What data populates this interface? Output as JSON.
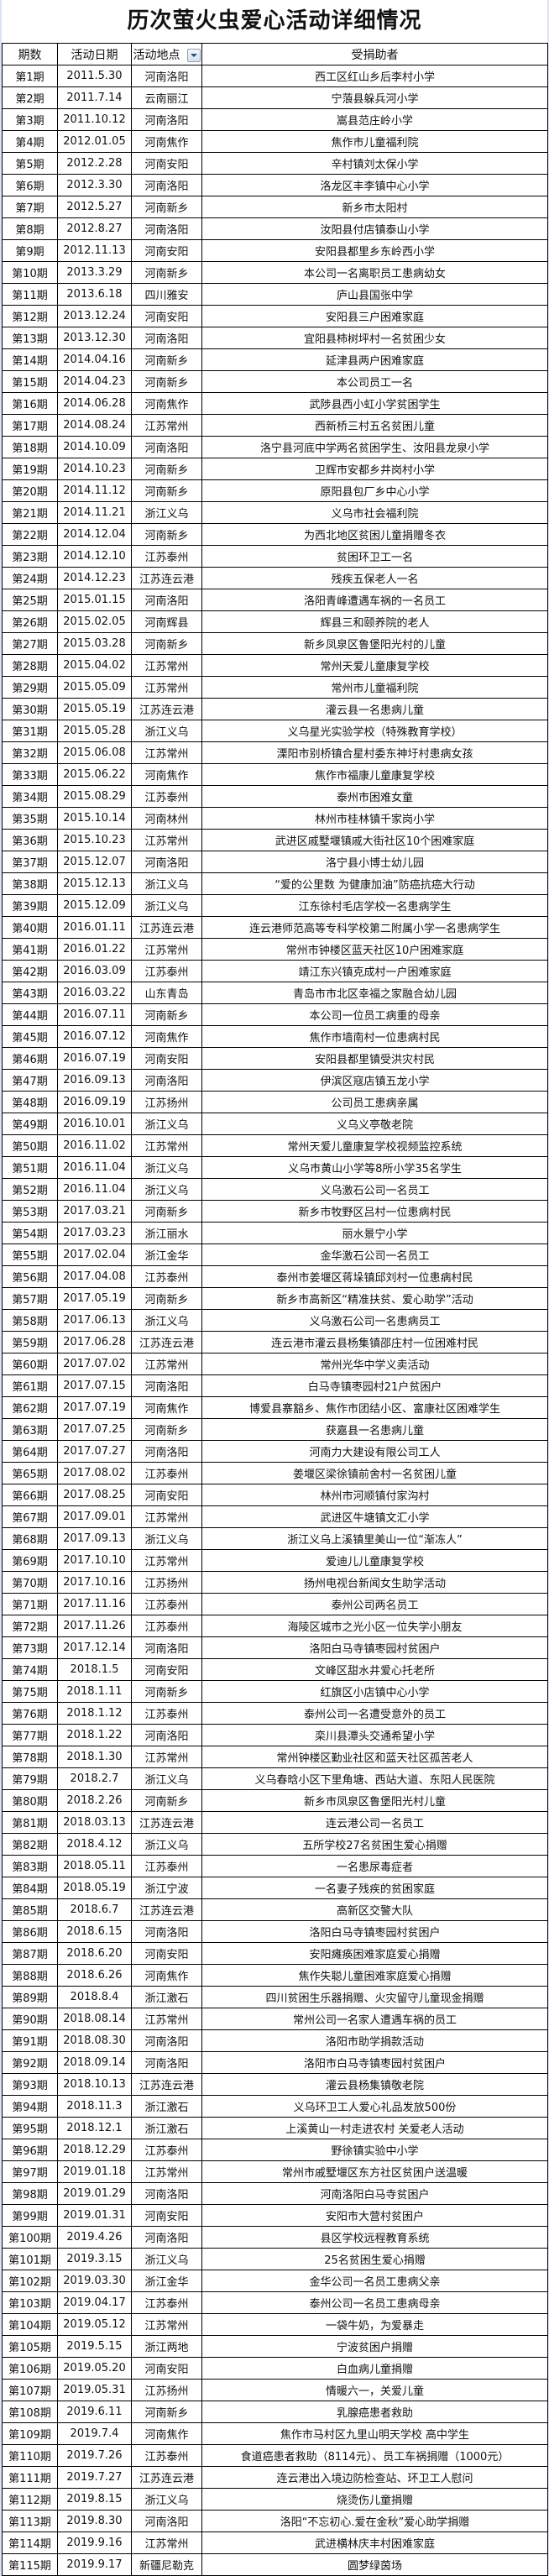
{
  "title": "历次萤火虫爱心活动详细情况",
  "headers": [
    "期数",
    "活动日期",
    "活动地点",
    "受捐助者"
  ],
  "filter_icon": "dropdown-filter-icon",
  "rows": [
    [
      "第1期",
      "2011.5.30",
      "河南洛阳",
      "西工区红山乡后李村小学"
    ],
    [
      "第2期",
      "2011.7.14",
      "云南丽江",
      "宁蒗县躲兵河小学"
    ],
    [
      "第3期",
      "2011.10.12",
      "河南洛阳",
      "嵩县范庄岭小学"
    ],
    [
      "第4期",
      "2012.01.05",
      "河南焦作",
      "焦作市儿童福利院"
    ],
    [
      "第5期",
      "2012.2.28",
      "河南安阳",
      "辛村镇刘太保小学"
    ],
    [
      "第6期",
      "2012.3.30",
      "河南洛阳",
      "洛龙区丰李镇中心小学"
    ],
    [
      "第7期",
      "2012.5.27",
      "河南新乡",
      "新乡市太阳村"
    ],
    [
      "第8期",
      "2012.8.27",
      "河南洛阳",
      "汝阳县付店镇泰山小学"
    ],
    [
      "第9期",
      "2012.11.13",
      "河南安阳",
      "安阳县都里乡东岭西小学"
    ],
    [
      "第10期",
      "2013.3.29",
      "河南新乡",
      "本公司一名离职员工患病幼女"
    ],
    [
      "第11期",
      "2013.6.18",
      "四川雅安",
      "庐山县国张中学"
    ],
    [
      "第12期",
      "2013.12.24",
      "河南安阳",
      "安阳县三户困难家庭"
    ],
    [
      "第13期",
      "2013.12.30",
      "河南洛阳",
      "宜阳县柿树坪村一名贫困少女"
    ],
    [
      "第14期",
      "2014.04.16",
      "河南新乡",
      "延津县两户困难家庭"
    ],
    [
      "第15期",
      "2014.04.23",
      "河南新乡",
      "本公司员工一名"
    ],
    [
      "第16期",
      "2014.06.28",
      "河南焦作",
      "武陟县西小虹小学贫困学生"
    ],
    [
      "第17期",
      "2014.08.24",
      "江苏常州",
      "西新桥三村五名贫困儿童"
    ],
    [
      "第18期",
      "2014.10.09",
      "河南洛阳",
      "洛宁县河底中学两名贫困学生、汝阳县龙泉小学"
    ],
    [
      "第19期",
      "2014.10.23",
      "河南新乡",
      "卫辉市安都乡井岗村小学"
    ],
    [
      "第20期",
      "2014.11.12",
      "河南新乡",
      "原阳县包厂乡中心小学"
    ],
    [
      "第21期",
      "2014.11.21",
      "浙江义乌",
      "义乌市社会福利院"
    ],
    [
      "第22期",
      "2014.12.04",
      "河南新乡",
      "为西北地区贫困儿童捐赠冬衣"
    ],
    [
      "第23期",
      "2014.12.10",
      "江苏泰州",
      "贫困环卫工一名"
    ],
    [
      "第24期",
      "2014.12.23",
      "江苏连云港",
      "残疾五保老人一名"
    ],
    [
      "第25期",
      "2015.01.15",
      "河南洛阳",
      "洛阳青峰遭遇车祸的一名员工"
    ],
    [
      "第26期",
      "2015.02.05",
      "河南辉县",
      "辉县三和颐养院的老人"
    ],
    [
      "第27期",
      "2015.03.28",
      "河南新乡",
      "新乡凤泉区鲁堡阳光村的儿童"
    ],
    [
      "第28期",
      "2015.04.02",
      "江苏常州",
      "常州天爱儿童康复学校"
    ],
    [
      "第29期",
      "2015.05.09",
      "江苏常州",
      "常州市儿童福利院"
    ],
    [
      "第30期",
      "2015.05.19",
      "江苏连云港",
      "灌云县一名患病儿童"
    ],
    [
      "第31期",
      "2015.05.28",
      "浙江义乌",
      "义乌星光实验学校（特殊教育学校）"
    ],
    [
      "第32期",
      "2015.06.08",
      "江苏常州",
      "溧阳市别桥镇合星村委东神圩村患病女孩"
    ],
    [
      "第33期",
      "2015.06.22",
      "河南焦作",
      "焦作市福康儿童康复学校"
    ],
    [
      "第34期",
      "2015.08.29",
      "江苏泰州",
      "泰州市困难女童"
    ],
    [
      "第35期",
      "2015.10.14",
      "河南林州",
      "林州市桂林镇千家岗小学"
    ],
    [
      "第36期",
      "2015.10.23",
      "江苏常州",
      "武进区戚墅堰镇戚大街社区10个困难家庭"
    ],
    [
      "第37期",
      "2015.12.07",
      "河南洛阳",
      "洛宁县小博士幼儿园"
    ],
    [
      "第38期",
      "2015.12.13",
      "浙江义乌",
      "“爱的公里数  为健康加油”防癌抗癌大行动"
    ],
    [
      "第39期",
      "2015.12.09",
      "浙江义乌",
      "江东徐村毛店学校一名患病学生"
    ],
    [
      "第40期",
      "2016.01.11",
      "江苏连云港",
      "连云港师范高等专科学校第二附属小学一名患病学生"
    ],
    [
      "第41期",
      "2016.01.22",
      "江苏常州",
      "常州市钟楼区蓝天社区10户困难家庭"
    ],
    [
      "第42期",
      "2016.03.09",
      "江苏泰州",
      "靖江东兴镇克成村一户困难家庭"
    ],
    [
      "第43期",
      "2016.03.22",
      "山东青岛",
      "青岛市市北区幸福之家融合幼儿园"
    ],
    [
      "第44期",
      "2016.07.11",
      "河南新乡",
      "本公司一位员工病重的母亲"
    ],
    [
      "第45期",
      "2016.07.12",
      "河南焦作",
      "焦作市墙南村一位患病村民"
    ],
    [
      "第46期",
      "2016.07.19",
      "河南安阳",
      "安阳县都里镇受洪灾村民"
    ],
    [
      "第47期",
      "2016.09.13",
      "河南洛阳",
      "伊滨区寇店镇五龙小学"
    ],
    [
      "第48期",
      "2016.09.19",
      "江苏扬州",
      "公司员工患病亲属"
    ],
    [
      "第49期",
      "2016.10.01",
      "浙江义乌",
      "义乌义亭敬老院"
    ],
    [
      "第50期",
      "2016.11.02",
      "江苏常州",
      "常州天爱儿童康复学校视频监控系统"
    ],
    [
      "第51期",
      "2016.11.04",
      "浙江义乌",
      "义乌市黄山小学等8所小学35名学生"
    ],
    [
      "第52期",
      "2016.11.04",
      "浙江义乌",
      "义乌激石公司一名员工"
    ],
    [
      "第53期",
      "2017.03.21",
      "河南新乡",
      "新乡市牧野区吕村一位患病村民"
    ],
    [
      "第54期",
      "2017.03.23",
      "浙江丽水",
      "丽水景宁小学"
    ],
    [
      "第55期",
      "2017.02.04",
      "浙江金华",
      "金华激石公司一名员工"
    ],
    [
      "第56期",
      "2017.04.08",
      "江苏泰州",
      "泰州市姜堰区蒋垛镇邱刘村一位患病村民"
    ],
    [
      "第57期",
      "2017.05.19",
      "河南新乡",
      "新乡市高新区“精准扶贫、爱心助学”活动"
    ],
    [
      "第58期",
      "2017.06.13",
      "浙江义乌",
      "义乌激石公司一名患病员工"
    ],
    [
      "第59期",
      "2017.06.28",
      "江苏连云港",
      "连云港市灌云县杨集镇邵庄村一位困难村民"
    ],
    [
      "第60期",
      "2017.07.02",
      "江苏常州",
      "常州光华中学义卖活动"
    ],
    [
      "第61期",
      "2017.07.15",
      "河南洛阳",
      "白马寺镇枣园村21户贫困户"
    ],
    [
      "第62期",
      "2017.07.19",
      "河南焦作",
      "博爱县寨豁乡、焦作市团结小区、富康社区困难学生"
    ],
    [
      "第63期",
      "2017.07.25",
      "河南新乡",
      "获嘉县一名患病儿童"
    ],
    [
      "第64期",
      "2017.07.27",
      "河南洛阳",
      "河南力大建设有限公司工人"
    ],
    [
      "第65期",
      "2017.08.02",
      "江苏泰州",
      "姜堰区梁徐镇前舍村一名贫困儿童"
    ],
    [
      "第66期",
      "2017.08.25",
      "河南安阳",
      "林州市河顺镇付家沟村"
    ],
    [
      "第67期",
      "2017.09.01",
      "江苏常州",
      "武进区牛塘镇文汇小学"
    ],
    [
      "第68期",
      "2017.09.13",
      "浙江义乌",
      "浙江义乌上溪镇里美山一位“渐冻人”"
    ],
    [
      "第69期",
      "2017.10.10",
      "江苏常州",
      "爱迪儿儿童康复学校"
    ],
    [
      "第70期",
      "2017.10.16",
      "江苏扬州",
      "扬州电视台新闻女生助学活动"
    ],
    [
      "第71期",
      "2017.11.16",
      "江苏泰州",
      "泰州公司两名员工"
    ],
    [
      "第72期",
      "2017.11.26",
      "江苏泰州",
      "海陵区城市之光小区一位失学小朋友"
    ],
    [
      "第73期",
      "2017.12.14",
      "河南洛阳",
      "洛阳白马寺镇枣园村贫困户"
    ],
    [
      "第74期",
      "2018.1.5",
      "河南安阳",
      "文峰区甜水井爱心托老所"
    ],
    [
      "第75期",
      "2018.1.11",
      "河南新乡",
      "红旗区小店镇中心小学"
    ],
    [
      "第76期",
      "2018.1.12",
      "江苏泰州",
      "泰州公司一名遭受意外的员工"
    ],
    [
      "第77期",
      "2018.1.22",
      "河南洛阳",
      "栾川县潭头交通希望小学"
    ],
    [
      "第78期",
      "2018.1.30",
      "江苏常州",
      "常州钟楼区勤业社区和蓝天社区孤苦老人"
    ],
    [
      "第79期",
      "2018.2.7",
      "浙江义乌",
      "义乌春晗小区下里角塘、西站大道、东阳人民医院"
    ],
    [
      "第80期",
      "2018.2.26",
      "河南新乡",
      "新乡市凤泉区鲁堡阳光村儿童"
    ],
    [
      "第81期",
      "2018.03.13",
      "江苏连云港",
      "连云港公司一名员工"
    ],
    [
      "第82期",
      "2018.4.12",
      "浙江义乌",
      "五所学校27名贫困生爱心捐赠"
    ],
    [
      "第83期",
      "2018.05.11",
      "江苏泰州",
      "一名患尿毒症者"
    ],
    [
      "第84期",
      "2018.05.19",
      "浙江宁波",
      "一名妻子残疾的贫困家庭"
    ],
    [
      "第85期",
      "2018.6.7",
      "江苏连云港",
      "高新区交警大队"
    ],
    [
      "第86期",
      "2018.6.15",
      "河南洛阳",
      "洛阳白马寺镇枣园村贫困户"
    ],
    [
      "第87期",
      "2018.6.20",
      "河南安阳",
      "安阳瘫痪困难家庭爱心捐赠"
    ],
    [
      "第88期",
      "2018.6.26",
      "河南焦作",
      "焦作失聪儿童困难家庭爱心捐赠"
    ],
    [
      "第89期",
      "2018.8.4",
      "浙江激石",
      "四川贫困生乐器捐赠、火灾留守儿童现金捐赠"
    ],
    [
      "第90期",
      "2018.08.14",
      "江苏常州",
      "常州公司一名家人遭遇车祸的员工"
    ],
    [
      "第91期",
      "2018.08.30",
      "河南洛阳",
      "洛阳市助学捐款活动"
    ],
    [
      "第92期",
      "2018.09.14",
      "河南洛阳",
      "洛阳市白马寺镇枣园村贫困户"
    ],
    [
      "第93期",
      "2018.10.13",
      "江苏连云港",
      "灌云县杨集镇敬老院"
    ],
    [
      "第94期",
      "2018.11.3",
      "浙江激石",
      "义乌环卫工人爱心礼品发放500份"
    ],
    [
      "第95期",
      "2018.12.1",
      "浙江激石",
      "上溪黄山一村走进农村   关爱老人活动"
    ],
    [
      "第96期",
      "2018.12.29",
      "江苏泰州",
      "野徐镇实验中小学"
    ],
    [
      "第97期",
      "2019.01.18",
      "江苏常州",
      "常州市戚墅堰区东方社区贫困户送温暖"
    ],
    [
      "第98期",
      "2019.01.29",
      "河南洛阳",
      "河南洛阳白马寺贫困户"
    ],
    [
      "第99期",
      "2019.01.31",
      "河南安阳",
      "安阳市大营村贫困户"
    ],
    [
      "第100期",
      "2019.4.26",
      "河南洛阳",
      "县区学校远程教育系统"
    ],
    [
      "第101期",
      "2019.3.15",
      "浙江义乌",
      "25名贫困生爱心捐赠"
    ],
    [
      "第102期",
      "2019.03.30",
      "浙江金华",
      "金华公司一名员工患病父亲"
    ],
    [
      "第103期",
      "2019.04.17",
      "江苏泰州",
      "泰州公司一名员工患病母亲"
    ],
    [
      "第104期",
      "2019.05.12",
      "江苏常州",
      "一袋牛奶，为爱暴走"
    ],
    [
      "第105期",
      "2019.5.15",
      "浙江两地",
      "宁波贫困户捐赠"
    ],
    [
      "第106期",
      "2019.05.20",
      "河南安阳",
      "白血病儿童捐赠"
    ],
    [
      "第107期",
      "2019.05.31",
      "江苏扬州",
      "情暖六一，关爱儿童"
    ],
    [
      "第108期",
      "2019.6.11",
      "河南新乡",
      "乳腺癌患者救助"
    ],
    [
      "第109期",
      "2019.7.4",
      "河南焦作",
      "焦作市马村区九里山明天学校 高中学生"
    ],
    [
      "第110期",
      "2019.7.26",
      "江苏泰州",
      "食道癌患者救助（8114元）、员工车祸捐赠（1000元）"
    ],
    [
      "第111期",
      "2019.7.27",
      "江苏连云港",
      "连云港出入境边防检查站、环卫工人慰问"
    ],
    [
      "第112期",
      "2019.8.15",
      "浙江义乌",
      "烧烫伤儿童捐赠"
    ],
    [
      "第113期",
      "2019.8.30",
      "河南洛阳",
      "洛阳“不忘初心.爱在金秋”爱心助学捐赠"
    ],
    [
      "第114期",
      "2019.9.16",
      "江苏常州",
      "武进横林庆丰村困难家庭"
    ],
    [
      "第115期",
      "2019.9.17",
      "新疆尼勒克",
      "圆梦绿茵场"
    ]
  ]
}
